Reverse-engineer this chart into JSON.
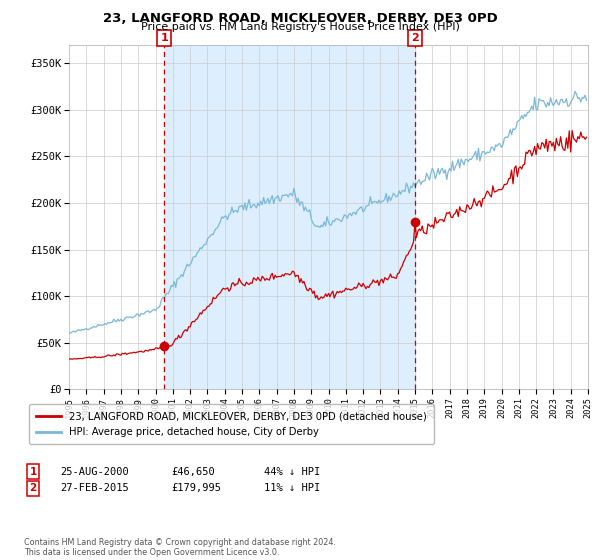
{
  "title": "23, LANGFORD ROAD, MICKLEOVER, DERBY, DE3 0PD",
  "subtitle": "Price paid vs. HM Land Registry's House Price Index (HPI)",
  "legend_label_red": "23, LANGFORD ROAD, MICKLEOVER, DERBY, DE3 0PD (detached house)",
  "legend_label_blue": "HPI: Average price, detached house, City of Derby",
  "annotation1_date": "25-AUG-2000",
  "annotation1_price": "£46,650",
  "annotation1_hpi": "44% ↓ HPI",
  "annotation2_date": "27-FEB-2015",
  "annotation2_price": "£179,995",
  "annotation2_hpi": "11% ↓ HPI",
  "footer": "Contains HM Land Registry data © Crown copyright and database right 2024.\nThis data is licensed under the Open Government Licence v3.0.",
  "hpi_color": "#7bb8d8",
  "price_color": "#cc0000",
  "shading_color": "#ddeeff",
  "grid_color": "#cccccc",
  "background_color": "#ffffff",
  "ylim": [
    0,
    370000
  ],
  "year_start": 1995,
  "year_end": 2025
}
